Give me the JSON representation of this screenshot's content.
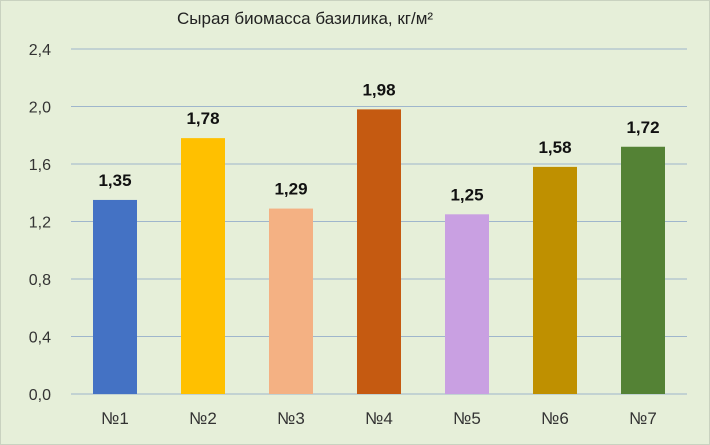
{
  "chart_data": {
    "type": "bar",
    "title": "Сырая биомасса базилика, кг/м²",
    "xlabel": "",
    "ylabel": "",
    "categories": [
      "№1",
      "№2",
      "№3",
      "№4",
      "№5",
      "№6",
      "№7"
    ],
    "values": [
      1.35,
      1.78,
      1.29,
      1.98,
      1.25,
      1.58,
      1.72
    ],
    "value_labels": [
      "1,35",
      "1,78",
      "1,29",
      "1,98",
      "1,25",
      "1,58",
      "1,72"
    ],
    "colors": [
      "#4472c4",
      "#ffc000",
      "#f4b183",
      "#c55a11",
      "#c9a0e2",
      "#bf9000",
      "#548235"
    ],
    "ylim": [
      0,
      2.4
    ],
    "yticks": [
      0,
      0.4,
      0.8,
      1.2,
      1.6,
      2.0,
      2.4
    ],
    "ytick_labels": [
      "0,0",
      "0,4",
      "0,8",
      "1,2",
      "1,6",
      "2,0",
      "2,4"
    ],
    "grid": true,
    "legend": "none"
  },
  "background_color": "#e6efd9"
}
